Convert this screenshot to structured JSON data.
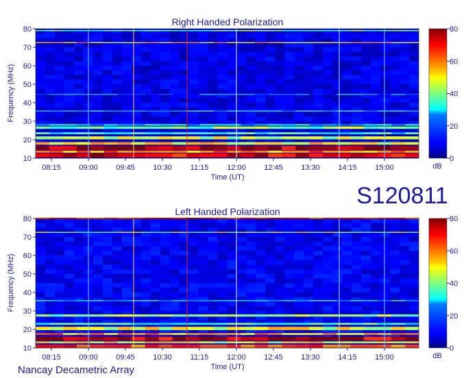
{
  "label": "S120811",
  "footer": "Nancay Decametric Array",
  "chart_data": [
    {
      "type": "heatmap",
      "title": "Right Handed Polarization",
      "xlabel": "Time (UT)",
      "ylabel": "Frequency (MHz)",
      "x_ticks": [
        "08:15",
        "09:00",
        "09:45",
        "10:30",
        "11:15",
        "12:00",
        "12:45",
        "13:30",
        "14:15",
        "15:00"
      ],
      "y_ticks": [
        10,
        20,
        30,
        40,
        50,
        60,
        70,
        80
      ],
      "ylim": [
        10,
        80
      ],
      "colorbar": {
        "label": "dB",
        "ticks": [
          0,
          20,
          40,
          60,
          80
        ],
        "range": [
          0,
          80
        ]
      },
      "background_db": 8,
      "bands": [
        {
          "f": 11.5,
          "w": 2.0,
          "db": 72
        },
        {
          "f": 13.5,
          "w": 1.2,
          "db": 60
        },
        {
          "f": 15.5,
          "w": 2.2,
          "db": 75
        },
        {
          "f": 18.0,
          "w": 1.4,
          "db": 52
        },
        {
          "f": 21.0,
          "w": 1.6,
          "db": 45
        },
        {
          "f": 23.5,
          "w": 1.0,
          "db": 32
        },
        {
          "f": 26.5,
          "w": 1.3,
          "db": 40
        },
        {
          "f": 28.0,
          "w": 0.8,
          "db": 28
        },
        {
          "f": 35.5,
          "w": 0.5,
          "db": 28
        },
        {
          "f": 44.5,
          "w": 0.5,
          "db": 18
        },
        {
          "f": 72.5,
          "w": 0.5,
          "db": 55
        },
        {
          "f": 79.0,
          "w": 0.6,
          "db": 40
        }
      ],
      "vertical_lines": [
        {
          "t": "09:00",
          "color": "#6fc6ff"
        },
        {
          "t": "09:55",
          "color": "#ffd24a"
        },
        {
          "t": "11:00",
          "color": "#c83232"
        },
        {
          "t": "12:00",
          "color": "#e8f0ff"
        },
        {
          "t": "14:05",
          "color": "#a8e8ff"
        },
        {
          "t": "15:00",
          "color": "#6fc6ff"
        }
      ]
    },
    {
      "type": "heatmap",
      "title": "Left Handed Polarization",
      "xlabel": "Time (UT)",
      "ylabel": "Frequency (MHz)",
      "x_ticks": [
        "08:15",
        "09:00",
        "09:45",
        "10:30",
        "11:15",
        "12:00",
        "12:45",
        "13:30",
        "14:15",
        "15:00"
      ],
      "y_ticks": [
        10,
        20,
        30,
        40,
        50,
        60,
        70,
        80
      ],
      "ylim": [
        10,
        80
      ],
      "colorbar": {
        "label": "dB",
        "ticks": [
          0,
          20,
          40,
          60,
          80
        ],
        "range": [
          0,
          80
        ]
      },
      "background_db": 9,
      "bands": [
        {
          "f": 11.0,
          "w": 1.5,
          "db": 65
        },
        {
          "f": 13.0,
          "w": 1.0,
          "db": 50
        },
        {
          "f": 15.0,
          "w": 2.0,
          "db": 75
        },
        {
          "f": 17.5,
          "w": 1.0,
          "db": 58
        },
        {
          "f": 20.5,
          "w": 1.8,
          "db": 48
        },
        {
          "f": 23.0,
          "w": 1.0,
          "db": 35
        },
        {
          "f": 27.5,
          "w": 1.2,
          "db": 42
        },
        {
          "f": 35.5,
          "w": 0.5,
          "db": 30
        },
        {
          "f": 72.5,
          "w": 0.5,
          "db": 45
        },
        {
          "f": 80.0,
          "w": 0.8,
          "db": 70
        }
      ],
      "vertical_lines": [
        {
          "t": "09:00",
          "color": "#6fc6ff"
        },
        {
          "t": "09:55",
          "color": "#ffd24a"
        },
        {
          "t": "11:00",
          "color": "#c83232"
        },
        {
          "t": "12:00",
          "color": "#e8f0ff"
        },
        {
          "t": "14:05",
          "color": "#a8e8ff"
        },
        {
          "t": "15:00",
          "color": "#6fc6ff"
        }
      ]
    }
  ]
}
